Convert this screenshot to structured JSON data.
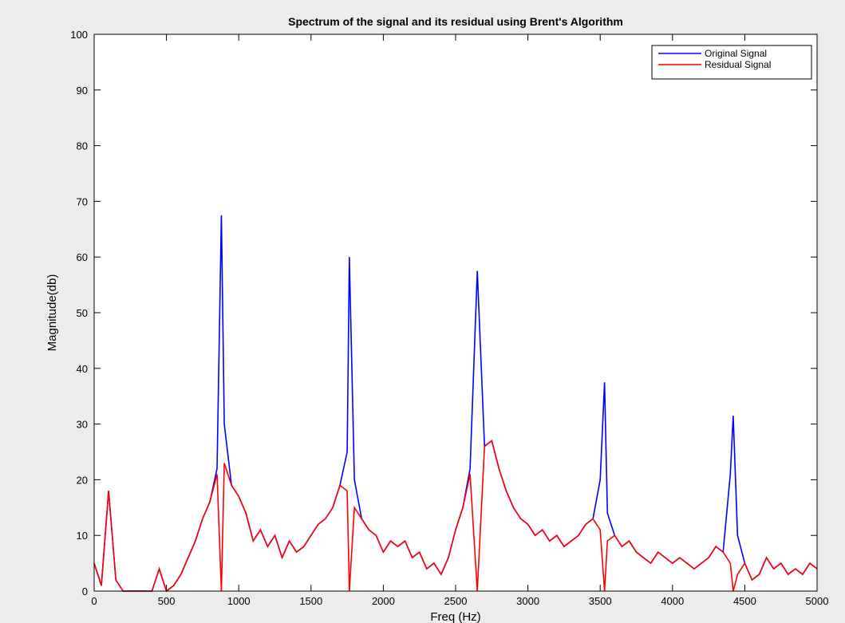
{
  "chart_data": {
    "type": "line",
    "title": "Spectrum of the signal and its residual using Brent's Algorithm",
    "xlabel": "Freq (Hz)",
    "ylabel": "Magnitude(db)",
    "x": [
      0,
      50,
      100,
      150,
      200,
      250,
      300,
      350,
      400,
      450,
      500,
      550,
      600,
      650,
      700,
      750,
      800,
      850,
      880,
      900,
      950,
      1000,
      1050,
      1100,
      1150,
      1200,
      1250,
      1300,
      1350,
      1400,
      1450,
      1500,
      1550,
      1600,
      1650,
      1700,
      1750,
      1765,
      1800,
      1850,
      1900,
      1950,
      2000,
      2050,
      2100,
      2150,
      2200,
      2250,
      2300,
      2350,
      2400,
      2450,
      2500,
      2550,
      2600,
      2650,
      2700,
      2750,
      2800,
      2850,
      2900,
      2950,
      3000,
      3050,
      3100,
      3150,
      3200,
      3250,
      3300,
      3350,
      3400,
      3450,
      3500,
      3530,
      3550,
      3600,
      3650,
      3700,
      3750,
      3800,
      3850,
      3900,
      3950,
      4000,
      4050,
      4100,
      4150,
      4200,
      4250,
      4300,
      4350,
      4400,
      4420,
      4450,
      4500,
      4550,
      4600,
      4650,
      4700,
      4750,
      4800,
      4850,
      4900,
      4950,
      5000
    ],
    "series": [
      {
        "name": "Original Signal",
        "color": "#0000ff",
        "values": [
          5,
          1,
          18,
          2,
          0,
          0,
          0,
          0,
          0,
          4,
          0,
          1,
          3,
          6,
          9,
          13,
          16,
          22,
          67.5,
          30,
          19,
          17,
          14,
          9,
          11,
          8,
          10,
          6,
          9,
          7,
          8,
          10,
          12,
          13,
          15,
          19,
          25,
          60,
          20,
          13,
          11,
          10,
          7,
          9,
          8,
          9,
          6,
          7,
          4,
          5,
          3,
          6,
          11,
          15,
          22,
          57.5,
          26,
          27,
          22,
          18,
          15,
          13,
          12,
          10,
          11,
          9,
          10,
          8,
          9,
          10,
          12,
          13,
          20,
          37.5,
          14,
          10,
          8,
          9,
          7,
          6,
          5,
          7,
          6,
          5,
          6,
          5,
          4,
          5,
          6,
          8,
          7,
          21,
          31.5,
          10,
          5,
          2,
          3,
          6,
          4,
          5,
          3,
          4,
          3,
          5,
          4
        ]
      },
      {
        "name": "Residual Signal",
        "color": "#ff0000",
        "values": [
          5,
          1,
          18,
          2,
          0,
          0,
          0,
          0,
          0,
          4,
          0,
          1,
          3,
          6,
          9,
          13,
          16,
          21,
          0,
          23,
          19,
          17,
          14,
          9,
          11,
          8,
          10,
          6,
          9,
          7,
          8,
          10,
          12,
          13,
          15,
          19,
          18,
          0,
          15,
          13,
          11,
          10,
          7,
          9,
          8,
          9,
          6,
          7,
          4,
          5,
          3,
          6,
          11,
          15,
          21,
          0,
          26,
          27,
          22,
          18,
          15,
          13,
          12,
          10,
          11,
          9,
          10,
          8,
          9,
          10,
          12,
          13,
          11,
          0,
          9,
          10,
          8,
          9,
          7,
          6,
          5,
          7,
          6,
          5,
          6,
          5,
          4,
          5,
          6,
          8,
          7,
          5,
          0,
          3,
          5,
          2,
          3,
          6,
          4,
          5,
          3,
          4,
          3,
          5,
          4
        ]
      }
    ],
    "xlim": [
      0,
      5000
    ],
    "xticks": [
      0,
      500,
      1000,
      1500,
      2000,
      2500,
      3000,
      3500,
      4000,
      4500,
      5000
    ],
    "ylim": [
      0,
      100
    ],
    "yticks": [
      0,
      10,
      20,
      30,
      40,
      50,
      60,
      70,
      80,
      90,
      100
    ],
    "legend": "upper right"
  }
}
